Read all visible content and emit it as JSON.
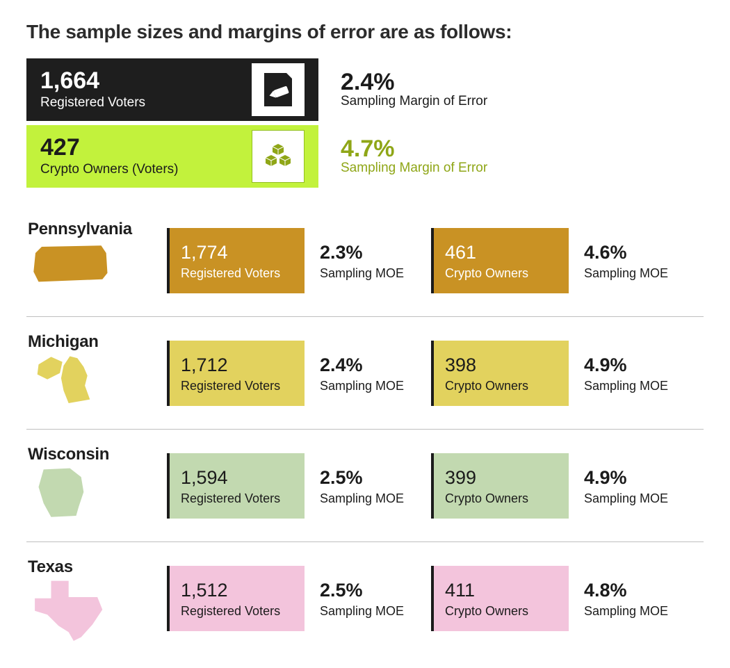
{
  "title": "The sample sizes and margins of error are as follows:",
  "top": {
    "voters": {
      "count": "1,664",
      "label": "Registered Voters",
      "moe": "2.4%",
      "moe_label": "Sampling Margin of Error",
      "card_bg": "#1e1e1e",
      "text_color": "#ffffff"
    },
    "crypto": {
      "count": "427",
      "label": "Crypto Owners (Voters)",
      "moe": "4.7%",
      "moe_label": "Sampling Margin of Error",
      "card_bg": "#c2f23c",
      "text_color": "#1b1b1b",
      "accent": "#8fa617"
    }
  },
  "labels": {
    "registered": "Registered Voters",
    "crypto": "Crypto Owners",
    "moe": "Sampling MOE"
  },
  "colors": {
    "pennsylvania": "#c99224",
    "michigan": "#e2d25e",
    "wisconsin": "#c2d9b0",
    "texas": "#f3c4dc",
    "card_text": "#1b1b1b",
    "card_text_pa": "#ffffff"
  },
  "states": [
    {
      "name": "Pennsylvania",
      "shape_color": "#c99224",
      "card_bg": "#c99224",
      "card_text": "#ffffff",
      "reg_count": "1,774",
      "reg_moe": "2.3%",
      "crypto_count": "461",
      "crypto_moe": "4.6%"
    },
    {
      "name": "Michigan",
      "shape_color": "#e2d25e",
      "card_bg": "#e2d25e",
      "card_text": "#1b1b1b",
      "reg_count": "1,712",
      "reg_moe": "2.4%",
      "crypto_count": "398",
      "crypto_moe": "4.9%"
    },
    {
      "name": "Wisconsin",
      "shape_color": "#c2d9b0",
      "card_bg": "#c2d9b0",
      "card_text": "#1b1b1b",
      "reg_count": "1,594",
      "reg_moe": "2.5%",
      "crypto_count": "399",
      "crypto_moe": "4.9%"
    },
    {
      "name": "Texas",
      "shape_color": "#f3c4dc",
      "card_bg": "#f3c4dc",
      "card_text": "#1b1b1b",
      "reg_count": "1,512",
      "reg_moe": "2.5%",
      "crypto_count": "411",
      "crypto_moe": "4.8%"
    }
  ]
}
